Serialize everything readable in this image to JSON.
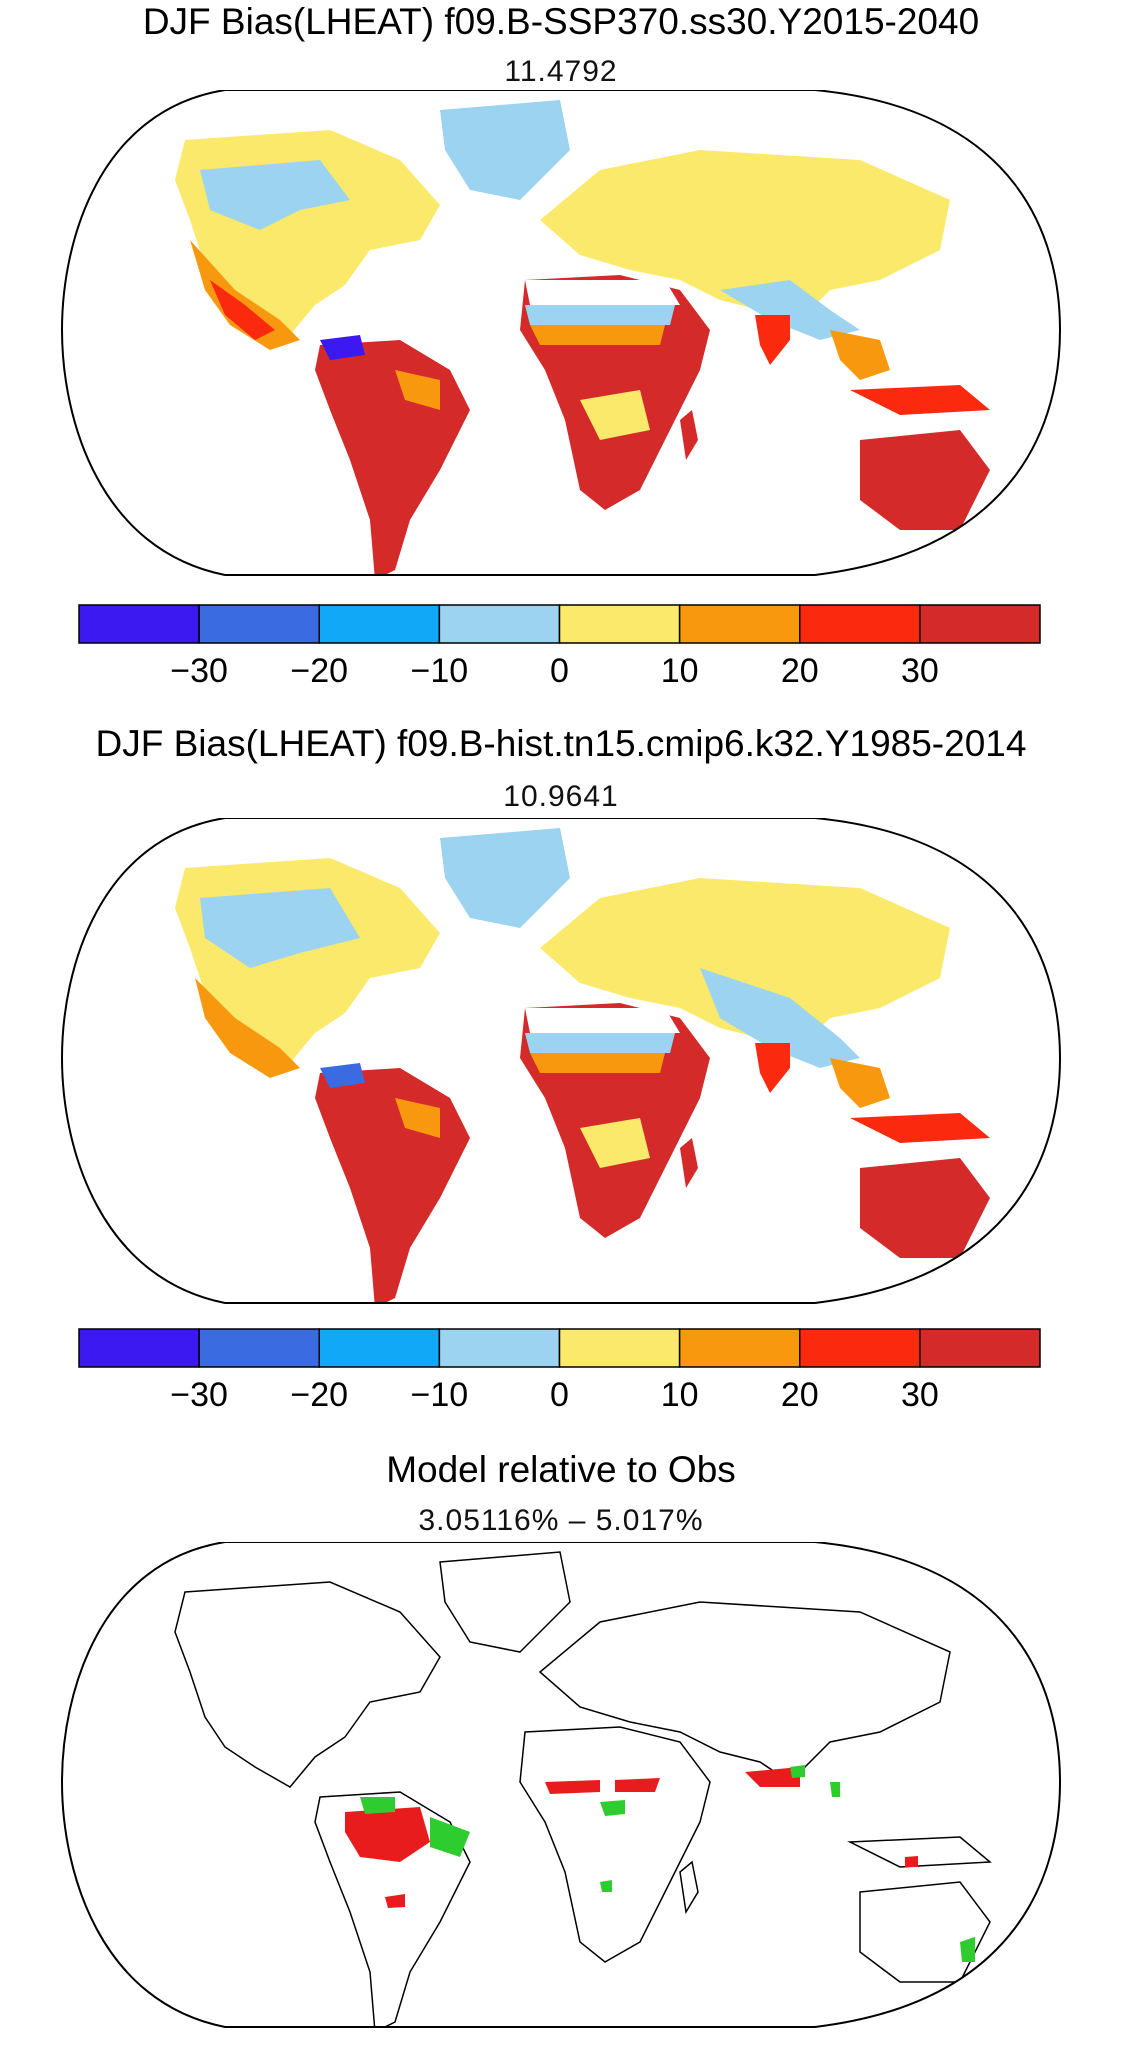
{
  "panels": [
    {
      "title": "DJF Bias(LHEAT) f09.B-SSP370.ss30.Y2015-2040",
      "subtitle": "11.4792"
    },
    {
      "title": "DJF Bias(LHEAT) f09.B-hist.tn15.cmip6.k32.Y1985-2014",
      "subtitle": "10.9641"
    },
    {
      "title": "Model relative to Obs",
      "subtitle": "3.05116% – 5.017%"
    }
  ],
  "colorbar": {
    "colors": [
      "#3b19f0",
      "#3b6be0",
      "#10a8f7",
      "#9cd3f0",
      "#fbe96b",
      "#f8980e",
      "#fb2a0e",
      "#d42a2a"
    ],
    "tick_labels": [
      "−30",
      "−20",
      "−10",
      "0",
      "10",
      "20",
      "30"
    ]
  },
  "relative_colors": {
    "better": "#2ecc2e",
    "worse": "#e81c1c"
  }
}
